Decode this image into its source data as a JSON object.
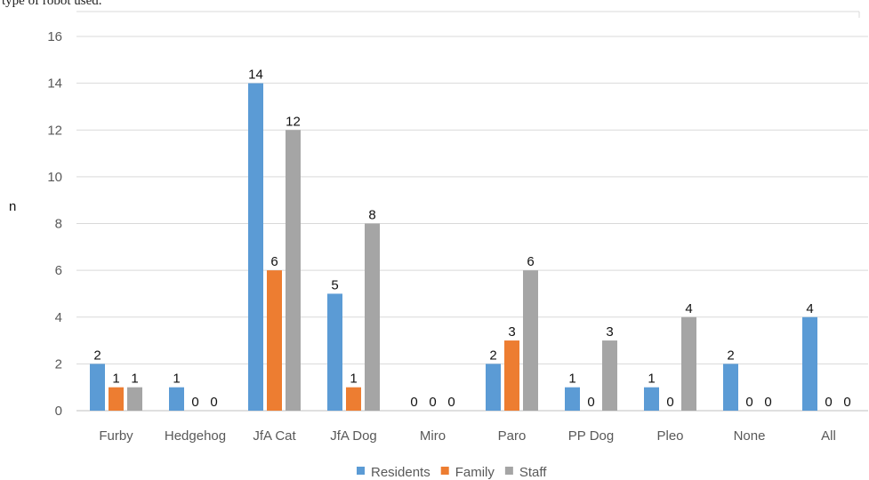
{
  "page": {
    "cut_title": "type of robot used."
  },
  "chart_data": {
    "type": "bar",
    "title": "",
    "xlabel": "",
    "ylabel": "n",
    "ylim": [
      0,
      16
    ],
    "yticks": [
      0,
      2,
      4,
      6,
      8,
      10,
      12,
      14,
      16
    ],
    "categories": [
      "Furby",
      "Hedgehog",
      "JfA Cat",
      "JfA Dog",
      "Miro",
      "Paro",
      "PP Dog",
      "Pleo",
      "None",
      "All"
    ],
    "series": [
      {
        "name": "Residents",
        "color": "#5B9BD5",
        "values": [
          2,
          1,
          14,
          5,
          0,
          2,
          1,
          1,
          2,
          4
        ]
      },
      {
        "name": "Family",
        "color": "#ED7D31",
        "values": [
          1,
          0,
          6,
          1,
          0,
          3,
          0,
          0,
          0,
          0
        ]
      },
      {
        "name": "Staff",
        "color": "#A5A5A5",
        "values": [
          1,
          0,
          12,
          8,
          0,
          6,
          3,
          4,
          0,
          0
        ]
      }
    ],
    "grid": true,
    "legend": "bottom"
  }
}
